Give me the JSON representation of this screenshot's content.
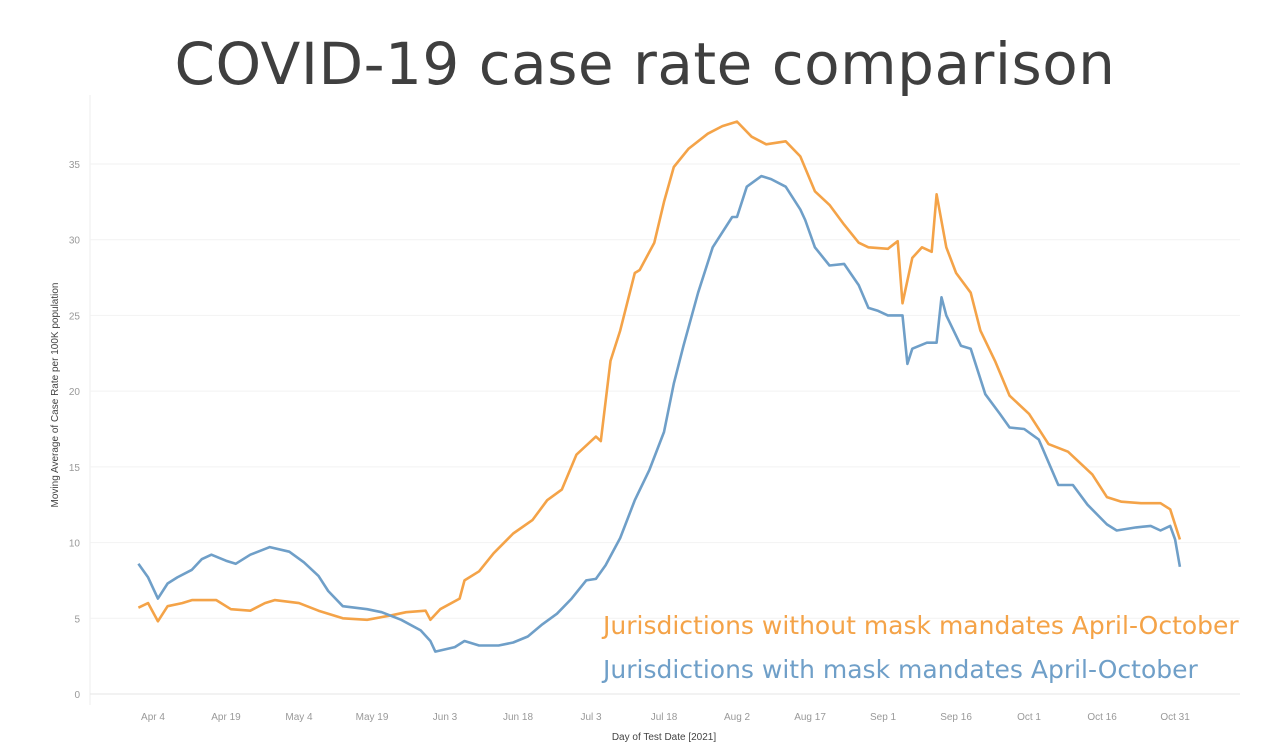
{
  "chart_data": {
    "type": "line",
    "title": "COVID-19 case rate comparison",
    "xlabel": "Day of Test Date [2021]",
    "ylabel": "Moving Average of Case Rate per 100K population",
    "ylim": [
      0,
      35
    ],
    "yticks": [
      0,
      5,
      10,
      15,
      20,
      25,
      30,
      35
    ],
    "xticks": [
      {
        "date": "2021-04-04",
        "label": "Apr 4"
      },
      {
        "date": "2021-04-19",
        "label": "Apr 19"
      },
      {
        "date": "2021-05-04",
        "label": "May 4"
      },
      {
        "date": "2021-05-19",
        "label": "May 19"
      },
      {
        "date": "2021-06-03",
        "label": "Jun 3"
      },
      {
        "date": "2021-06-18",
        "label": "Jun 18"
      },
      {
        "date": "2021-07-03",
        "label": "Jul 3"
      },
      {
        "date": "2021-07-18",
        "label": "Jul 18"
      },
      {
        "date": "2021-08-02",
        "label": "Aug 2"
      },
      {
        "date": "2021-08-17",
        "label": "Aug 17"
      },
      {
        "date": "2021-09-01",
        "label": "Sep 1"
      },
      {
        "date": "2021-09-16",
        "label": "Sep 16"
      },
      {
        "date": "2021-10-01",
        "label": "Oct 1"
      },
      {
        "date": "2021-10-16",
        "label": "Oct 16"
      },
      {
        "date": "2021-10-31",
        "label": "Oct 31"
      }
    ],
    "grid": true,
    "legend_placement": "bottom-right",
    "series": [
      {
        "name": "Jurisdictions without mask mandates April-October",
        "color": "#f4a348",
        "points": [
          [
            "2021-04-01",
            5.7
          ],
          [
            "2021-04-03",
            6.0
          ],
          [
            "2021-04-05",
            4.8
          ],
          [
            "2021-04-07",
            5.8
          ],
          [
            "2021-04-10",
            6.0
          ],
          [
            "2021-04-12",
            6.2
          ],
          [
            "2021-04-17",
            6.2
          ],
          [
            "2021-04-20",
            5.6
          ],
          [
            "2021-04-24",
            5.5
          ],
          [
            "2021-04-27",
            6.0
          ],
          [
            "2021-04-29",
            6.2
          ],
          [
            "2021-05-04",
            6.0
          ],
          [
            "2021-05-08",
            5.5
          ],
          [
            "2021-05-13",
            5.0
          ],
          [
            "2021-05-18",
            4.9
          ],
          [
            "2021-05-23",
            5.2
          ],
          [
            "2021-05-26",
            5.4
          ],
          [
            "2021-05-30",
            5.5
          ],
          [
            "2021-05-31",
            4.9
          ],
          [
            "2021-06-02",
            5.6
          ],
          [
            "2021-06-06",
            6.3
          ],
          [
            "2021-06-07",
            7.5
          ],
          [
            "2021-06-10",
            8.1
          ],
          [
            "2021-06-13",
            9.3
          ],
          [
            "2021-06-17",
            10.6
          ],
          [
            "2021-06-21",
            11.5
          ],
          [
            "2021-06-24",
            12.8
          ],
          [
            "2021-06-27",
            13.5
          ],
          [
            "2021-06-30",
            15.8
          ],
          [
            "2021-07-04",
            17.0
          ],
          [
            "2021-07-05",
            16.7
          ],
          [
            "2021-07-07",
            22.0
          ],
          [
            "2021-07-09",
            24.0
          ],
          [
            "2021-07-12",
            27.8
          ],
          [
            "2021-07-13",
            28.0
          ],
          [
            "2021-07-16",
            29.8
          ],
          [
            "2021-07-18",
            32.5
          ],
          [
            "2021-07-20",
            34.8
          ],
          [
            "2021-07-23",
            36.0
          ],
          [
            "2021-07-27",
            37.0
          ],
          [
            "2021-07-30",
            37.5
          ],
          [
            "2021-08-02",
            37.8
          ],
          [
            "2021-08-05",
            36.8
          ],
          [
            "2021-08-08",
            36.3
          ],
          [
            "2021-08-12",
            36.5
          ],
          [
            "2021-08-15",
            35.5
          ],
          [
            "2021-08-18",
            33.2
          ],
          [
            "2021-08-21",
            32.3
          ],
          [
            "2021-08-24",
            31.0
          ],
          [
            "2021-08-27",
            29.8
          ],
          [
            "2021-08-29",
            29.5
          ],
          [
            "2021-09-02",
            29.4
          ],
          [
            "2021-09-04",
            29.9
          ],
          [
            "2021-09-05",
            25.8
          ],
          [
            "2021-09-07",
            28.8
          ],
          [
            "2021-09-09",
            29.5
          ],
          [
            "2021-09-11",
            29.2
          ],
          [
            "2021-09-12",
            33.0
          ],
          [
            "2021-09-14",
            29.5
          ],
          [
            "2021-09-16",
            27.8
          ],
          [
            "2021-09-19",
            26.5
          ],
          [
            "2021-09-21",
            24.0
          ],
          [
            "2021-09-24",
            22.0
          ],
          [
            "2021-09-27",
            19.7
          ],
          [
            "2021-10-01",
            18.5
          ],
          [
            "2021-10-05",
            16.5
          ],
          [
            "2021-10-09",
            16.0
          ],
          [
            "2021-10-14",
            14.5
          ],
          [
            "2021-10-17",
            13.0
          ],
          [
            "2021-10-20",
            12.7
          ],
          [
            "2021-10-24",
            12.6
          ],
          [
            "2021-10-28",
            12.6
          ],
          [
            "2021-10-30",
            12.2
          ],
          [
            "2021-11-01",
            10.2
          ]
        ]
      },
      {
        "name": "Jurisdictions with mask mandates April-October",
        "color": "#6f9fc8",
        "points": [
          [
            "2021-04-01",
            8.6
          ],
          [
            "2021-04-03",
            7.7
          ],
          [
            "2021-04-05",
            6.3
          ],
          [
            "2021-04-07",
            7.3
          ],
          [
            "2021-04-09",
            7.7
          ],
          [
            "2021-04-12",
            8.2
          ],
          [
            "2021-04-14",
            8.9
          ],
          [
            "2021-04-16",
            9.2
          ],
          [
            "2021-04-19",
            8.8
          ],
          [
            "2021-04-21",
            8.6
          ],
          [
            "2021-04-24",
            9.2
          ],
          [
            "2021-04-28",
            9.7
          ],
          [
            "2021-05-02",
            9.4
          ],
          [
            "2021-05-05",
            8.7
          ],
          [
            "2021-05-08",
            7.8
          ],
          [
            "2021-05-10",
            6.8
          ],
          [
            "2021-05-13",
            5.8
          ],
          [
            "2021-05-18",
            5.6
          ],
          [
            "2021-05-21",
            5.4
          ],
          [
            "2021-05-25",
            4.9
          ],
          [
            "2021-05-29",
            4.2
          ],
          [
            "2021-05-31",
            3.5
          ],
          [
            "2021-06-01",
            2.8
          ],
          [
            "2021-06-05",
            3.1
          ],
          [
            "2021-06-07",
            3.5
          ],
          [
            "2021-06-10",
            3.2
          ],
          [
            "2021-06-14",
            3.2
          ],
          [
            "2021-06-17",
            3.4
          ],
          [
            "2021-06-20",
            3.8
          ],
          [
            "2021-06-23",
            4.6
          ],
          [
            "2021-06-26",
            5.3
          ],
          [
            "2021-06-29",
            6.3
          ],
          [
            "2021-07-02",
            7.5
          ],
          [
            "2021-07-04",
            7.6
          ],
          [
            "2021-07-06",
            8.5
          ],
          [
            "2021-07-09",
            10.3
          ],
          [
            "2021-07-12",
            12.8
          ],
          [
            "2021-07-15",
            14.8
          ],
          [
            "2021-07-18",
            17.3
          ],
          [
            "2021-07-20",
            20.5
          ],
          [
            "2021-07-22",
            23.0
          ],
          [
            "2021-07-25",
            26.5
          ],
          [
            "2021-07-28",
            29.5
          ],
          [
            "2021-08-01",
            31.5
          ],
          [
            "2021-08-02",
            31.5
          ],
          [
            "2021-08-04",
            33.5
          ],
          [
            "2021-08-07",
            34.2
          ],
          [
            "2021-08-09",
            34.0
          ],
          [
            "2021-08-12",
            33.5
          ],
          [
            "2021-08-15",
            32.0
          ],
          [
            "2021-08-16",
            31.3
          ],
          [
            "2021-08-18",
            29.5
          ],
          [
            "2021-08-21",
            28.3
          ],
          [
            "2021-08-24",
            28.4
          ],
          [
            "2021-08-27",
            27.0
          ],
          [
            "2021-08-29",
            25.5
          ],
          [
            "2021-08-31",
            25.3
          ],
          [
            "2021-09-02",
            25.0
          ],
          [
            "2021-09-05",
            25.0
          ],
          [
            "2021-09-06",
            21.8
          ],
          [
            "2021-09-07",
            22.8
          ],
          [
            "2021-09-10",
            23.2
          ],
          [
            "2021-09-12",
            23.2
          ],
          [
            "2021-09-13",
            26.2
          ],
          [
            "2021-09-14",
            25.0
          ],
          [
            "2021-09-17",
            23.0
          ],
          [
            "2021-09-19",
            22.8
          ],
          [
            "2021-09-22",
            19.8
          ],
          [
            "2021-09-25",
            18.5
          ],
          [
            "2021-09-27",
            17.6
          ],
          [
            "2021-09-30",
            17.5
          ],
          [
            "2021-10-03",
            16.8
          ],
          [
            "2021-10-05",
            15.3
          ],
          [
            "2021-10-07",
            13.8
          ],
          [
            "2021-10-10",
            13.8
          ],
          [
            "2021-10-13",
            12.5
          ],
          [
            "2021-10-17",
            11.2
          ],
          [
            "2021-10-19",
            10.8
          ],
          [
            "2021-10-23",
            11.0
          ],
          [
            "2021-10-26",
            11.1
          ],
          [
            "2021-10-28",
            10.8
          ],
          [
            "2021-10-30",
            11.1
          ],
          [
            "2021-10-31",
            10.2
          ],
          [
            "2021-11-01",
            8.4
          ]
        ]
      }
    ]
  }
}
